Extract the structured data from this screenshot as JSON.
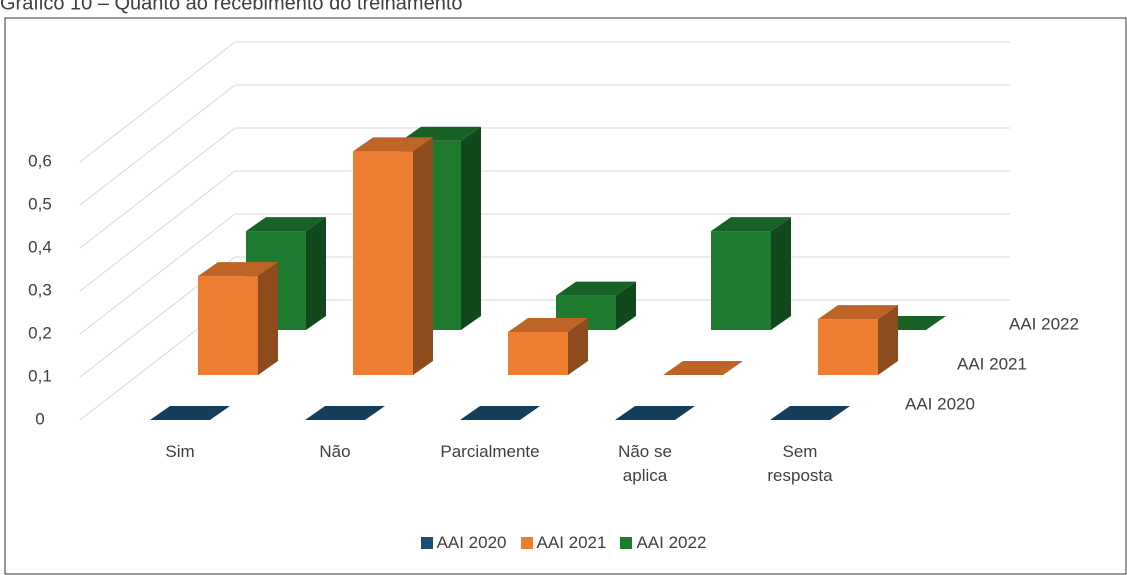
{
  "chart_data": {
    "type": "bar3d",
    "title": "Gráfico 10 – Quanto ao recebimento do treinamento",
    "categories": [
      "Sim",
      "Não",
      "Parcialmente",
      "Não se aplica",
      "Sem resposta"
    ],
    "series": [
      {
        "name": "AAI 2020",
        "color": "#1a4e73",
        "values": [
          0,
          0,
          0,
          0,
          0
        ]
      },
      {
        "name": "AAI 2021",
        "color": "#ed7d31",
        "values": [
          0.23,
          0.52,
          0.1,
          0,
          0.13
        ]
      },
      {
        "name": "AAI 2022",
        "color": "#1e7a2e",
        "values": [
          0.23,
          0.44,
          0.08,
          0.23,
          0
        ]
      }
    ],
    "ylim": [
      0,
      0.6
    ],
    "yticks": [
      0,
      {
        "value": 0.1,
        "label": "0,1"
      },
      {
        "value": 0.2,
        "label": "0,2"
      },
      {
        "value": 0.3,
        "label": "0,3"
      },
      {
        "value": 0.4,
        "label": "0,4"
      },
      {
        "value": 0.5,
        "label": "0,5"
      },
      {
        "value": 0.6,
        "label": "0,6"
      }
    ],
    "grid": true,
    "legend": "bottom"
  }
}
